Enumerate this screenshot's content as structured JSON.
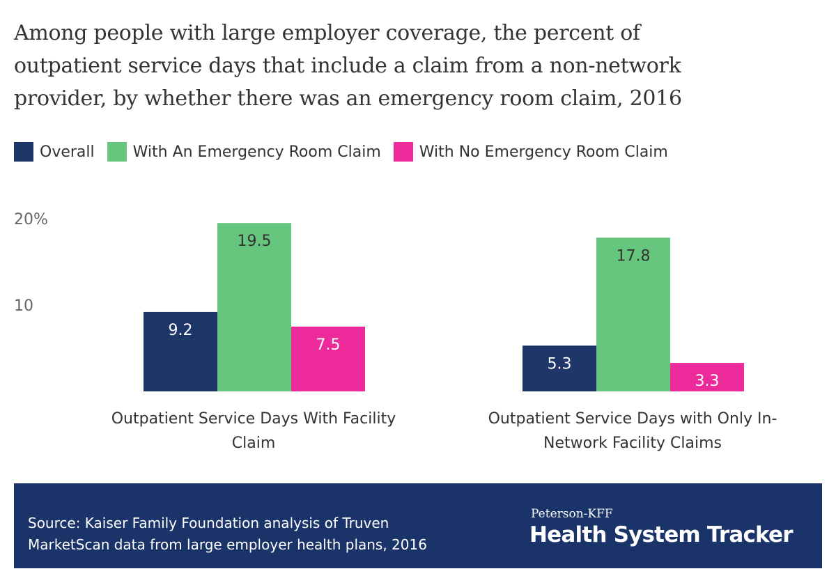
{
  "title_lines": [
    "Among people with large employer coverage, the percent of",
    "outpatient service days that include a claim from a non-network",
    "provider, by whether there was an emergency room claim, 2016"
  ],
  "footer": {
    "source_lines": [
      "Source: Kaiser Family Foundation analysis of Truven",
      "MarketScan data from large employer health plans, 2016"
    ],
    "brand_small": "Peterson-KFF",
    "brand_big": "Health System Tracker"
  },
  "chart_data": {
    "type": "bar",
    "categories": [
      "Outpatient Service Days With Facility Claim",
      "Outpatient Service Days with Only In-Network Facility Claims"
    ],
    "category_label_lines": [
      [
        "Outpatient Service Days With Facility",
        "Claim"
      ],
      [
        "Outpatient Service Days with Only In-",
        "Network Facility Claims"
      ]
    ],
    "series": [
      {
        "name": "Overall",
        "color": "#1f3669",
        "values": [
          9.2,
          5.3
        ],
        "labels": [
          "9.2",
          "5.3"
        ]
      },
      {
        "name": "With An Emergency Room Claim",
        "color": "#66c67e",
        "values": [
          19.5,
          17.8
        ],
        "labels": [
          "19.5",
          "17.8"
        ]
      },
      {
        "name": "With No Emergency Room Claim",
        "color": "#ec2a9a",
        "values": [
          7.5,
          3.3
        ],
        "labels": [
          "7.5",
          "3.3"
        ]
      }
    ],
    "y_ticks": [
      {
        "value": 10,
        "label": "10"
      },
      {
        "value": 20,
        "label": "20%"
      }
    ],
    "ylim": [
      0,
      20
    ],
    "grid": false,
    "legend_position": "top-left"
  }
}
